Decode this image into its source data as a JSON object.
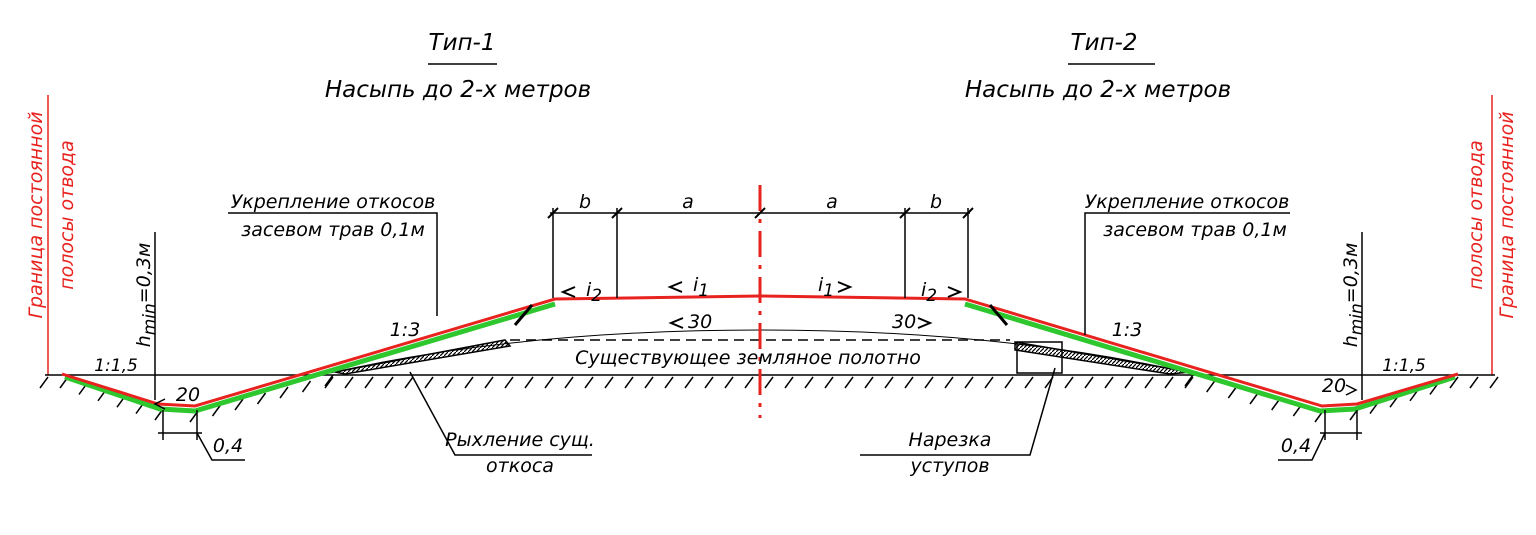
{
  "titles": [
    {
      "type": "Тип-1",
      "subtitle": "Насыпь до 2-х метров"
    },
    {
      "type": "Тип-2",
      "subtitle": "Насыпь до 2-х метров"
    }
  ],
  "boundary": [
    {
      "line1": "Граница постоянной",
      "line2": "полосы отвода"
    },
    {
      "line1": "Граница постоянной",
      "line2": "полосы отвода"
    }
  ],
  "h_min": [
    {
      "base": "h",
      "sub": "min",
      "rest": "=0,3м"
    },
    {
      "base": "h",
      "sub": "min",
      "rest": "=0,3м"
    }
  ],
  "reinforcement": [
    {
      "line1": "Укрепление откосов",
      "line2": "засевом трав 0,1м"
    },
    {
      "line1": "Укрепление откосов",
      "line2": "засевом трав 0,1м"
    }
  ],
  "ditch_slope": [
    "1:1,5",
    "1:1,5"
  ],
  "ditch_depth": [
    "20",
    "20"
  ],
  "ditch_width": [
    "0,4",
    "0,4"
  ],
  "slope": [
    "1:3",
    "1:3"
  ],
  "dimensions": [
    "b",
    "a",
    "a",
    "b"
  ],
  "cross_slopes": [
    {
      "base": "i",
      "sub": "2"
    },
    {
      "base": "i",
      "sub": "1"
    },
    {
      "base": "i",
      "sub": "1"
    },
    {
      "base": "i",
      "sub": "2"
    }
  ],
  "existing_slopes": [
    "30",
    "30"
  ],
  "existing_label": "Существующее земляное полотно",
  "loosening": {
    "line1": "Рыхление сущ.",
    "line2": "откоса"
  },
  "benching": {
    "line1": "Нарезка",
    "line2": "уступов"
  }
}
